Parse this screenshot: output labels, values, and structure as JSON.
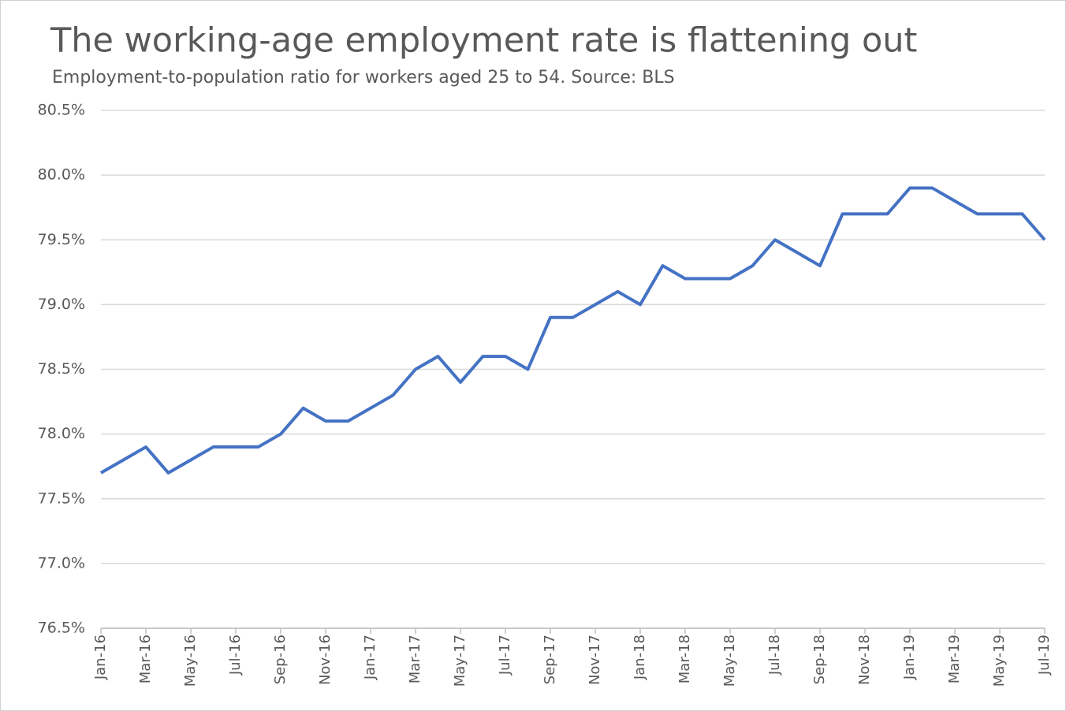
{
  "chart_data": {
    "type": "line",
    "title": "The working-age employment rate is flattening out",
    "subtitle": "Employment-to-population ratio for workers aged 25 to 54. Source: BLS",
    "categories": [
      "Jan-16",
      null,
      "Mar-16",
      null,
      "May-16",
      null,
      "Jul-16",
      null,
      "Sep-16",
      null,
      "Nov-16",
      null,
      "Jan-17",
      null,
      "Mar-17",
      null,
      "May-17",
      null,
      "Jul-17",
      null,
      "Sep-17",
      null,
      "Nov-17",
      null,
      "Jan-18",
      null,
      "Mar-18",
      null,
      "May-18",
      null,
      "Jul-18",
      null,
      "Sep-18",
      null,
      "Nov-18",
      null,
      "Jan-19",
      null,
      "Mar-19",
      null,
      "May-19",
      null,
      "Jul-19"
    ],
    "values": [
      77.7,
      77.8,
      77.9,
      77.7,
      77.8,
      77.9,
      77.9,
      77.9,
      78.0,
      78.2,
      78.1,
      78.1,
      78.2,
      78.3,
      78.5,
      78.6,
      78.4,
      78.6,
      78.6,
      78.5,
      78.9,
      78.9,
      79.0,
      79.1,
      79.0,
      79.3,
      79.2,
      79.2,
      79.2,
      79.3,
      79.5,
      79.4,
      79.3,
      79.7,
      79.7,
      79.7,
      79.9,
      79.9,
      79.8,
      79.7,
      79.7,
      79.7,
      79.5
    ],
    "color": "#4472c4",
    "ylim": [
      76.5,
      80.5
    ],
    "yticks": [
      {
        "value": 76.5,
        "label": "76.5%"
      },
      {
        "value": 77.0,
        "label": "77.0%"
      },
      {
        "value": 77.5,
        "label": "77.5%"
      },
      {
        "value": 78.0,
        "label": "78.0%"
      },
      {
        "value": 78.5,
        "label": "78.5%"
      },
      {
        "value": 79.0,
        "label": "79.0%"
      },
      {
        "value": 79.5,
        "label": "79.5%"
      },
      {
        "value": 80.0,
        "label": "80.0%"
      },
      {
        "value": 80.5,
        "label": "80.5%"
      }
    ],
    "grid": true
  }
}
